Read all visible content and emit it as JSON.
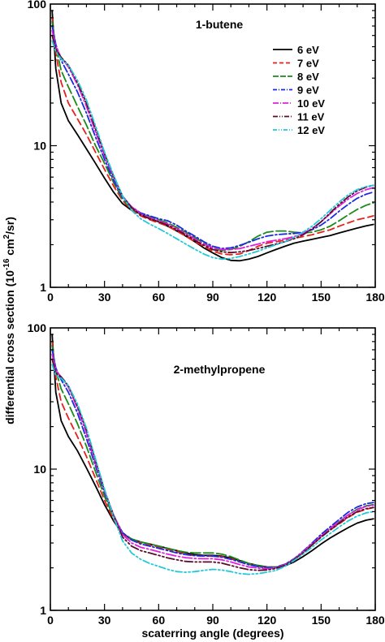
{
  "chart_data": {
    "type": "line",
    "xlabel": "scaterring angle (degrees)",
    "ylabel_main": "differential cross section (10",
    "ylabel_exp": "-16",
    "ylabel_mid": " cm",
    "ylabel_exp2": "2",
    "ylabel_end": "/sr)",
    "y_scale": "log",
    "xlim": [
      0,
      180
    ],
    "ylim": [
      1,
      100
    ],
    "x_ticks": [
      "0",
      "30",
      "60",
      "90",
      "120",
      "150",
      "180"
    ],
    "y_ticks": [
      "1",
      "10",
      "100"
    ],
    "legend_position": "top-right",
    "legend": [
      {
        "name": "6 eV",
        "color": "#000000",
        "dash": ""
      },
      {
        "name": "7 eV",
        "color": "#e8201c",
        "dash": "8,5"
      },
      {
        "name": "8 eV",
        "color": "#1a8a1a",
        "dash": "12,4"
      },
      {
        "name": "9 eV",
        "color": "#1c2be0",
        "dash": "9,3,2,3"
      },
      {
        "name": "10 eV",
        "color": "#e020e0",
        "dash": "12,3,2,3"
      },
      {
        "name": "11 eV",
        "color": "#5a0d2a",
        "dash": "10,3,2,3,2,3"
      },
      {
        "name": "12 eV",
        "color": "#22c8d8",
        "dash": "8,3,2,3,2,3"
      }
    ],
    "panels": [
      {
        "title": "1-butene",
        "x": [
          1,
          3,
          6,
          10,
          15,
          20,
          25,
          30,
          35,
          40,
          45,
          50,
          55,
          60,
          65,
          70,
          75,
          80,
          85,
          90,
          95,
          100,
          105,
          110,
          115,
          120,
          125,
          130,
          135,
          140,
          145,
          150,
          155,
          160,
          165,
          170,
          175,
          179
        ],
        "series": [
          {
            "name": "6 eV",
            "values": [
              90,
              35,
              20,
              15,
              12,
              9.5,
              7.5,
              5.9,
              4.7,
              3.9,
              3.5,
              3.3,
              3.1,
              2.9,
              2.7,
              2.5,
              2.3,
              2.1,
              1.9,
              1.75,
              1.62,
              1.55,
              1.54,
              1.58,
              1.65,
              1.75,
              1.85,
              1.95,
              2.05,
              2.12,
              2.18,
              2.25,
              2.32,
              2.42,
              2.52,
              2.62,
              2.72,
              2.78
            ]
          },
          {
            "name": "7 eV",
            "values": [
              80,
              45,
              28,
              20,
              15.5,
              12,
              9.0,
              6.8,
              5.2,
              4.1,
              3.5,
              3.2,
              3.0,
              2.85,
              2.7,
              2.5,
              2.3,
              2.1,
              1.95,
              1.8,
              1.72,
              1.7,
              1.72,
              1.82,
              1.95,
              2.05,
              2.1,
              2.15,
              2.22,
              2.28,
              2.35,
              2.45,
              2.55,
              2.7,
              2.85,
              3.0,
              3.1,
              3.2
            ]
          },
          {
            "name": "8 eV",
            "values": [
              75,
              50,
              34,
              26,
              19,
              14,
              10,
              7.5,
              5.5,
              4.2,
              3.6,
              3.3,
              3.15,
              3.0,
              2.85,
              2.65,
              2.45,
              2.25,
              2.05,
              1.9,
              1.82,
              1.85,
              1.95,
              2.1,
              2.3,
              2.45,
              2.5,
              2.5,
              2.45,
              2.42,
              2.45,
              2.55,
              2.7,
              2.95,
              3.25,
              3.55,
              3.8,
              3.95
            ]
          },
          {
            "name": "9 eV",
            "values": [
              70,
              52,
              40,
              32,
              24,
              17,
              11.5,
              8.0,
              5.7,
              4.3,
              3.7,
              3.35,
              3.2,
              3.05,
              2.95,
              2.75,
              2.5,
              2.3,
              2.1,
              1.95,
              1.88,
              1.9,
              1.98,
              2.08,
              2.2,
              2.3,
              2.35,
              2.38,
              2.4,
              2.45,
              2.55,
              2.75,
              3.05,
              3.45,
              3.85,
              4.25,
              4.55,
              4.7
            ]
          },
          {
            "name": "10 eV",
            "values": [
              65,
              50,
              42,
              36,
              27,
              19,
              12.5,
              8.5,
              6.0,
              4.4,
              3.7,
              3.3,
              3.1,
              2.95,
              2.8,
              2.6,
              2.4,
              2.2,
              2.02,
              1.9,
              1.85,
              1.85,
              1.88,
              1.95,
              2.02,
              2.1,
              2.15,
              2.2,
              2.28,
              2.4,
              2.6,
              2.9,
              3.3,
              3.75,
              4.2,
              4.6,
              4.9,
              5.05
            ]
          },
          {
            "name": "11 eV",
            "values": [
              60,
              48,
              42,
              37,
              28,
              20,
              13.2,
              8.8,
              6.1,
              4.4,
              3.65,
              3.25,
              3.05,
              2.9,
              2.75,
              2.55,
              2.35,
              2.15,
              1.98,
              1.85,
              1.78,
              1.76,
              1.78,
              1.82,
              1.88,
              1.95,
              2.02,
              2.1,
              2.2,
              2.35,
              2.58,
              2.9,
              3.35,
              3.85,
              4.35,
              4.8,
              5.1,
              5.25
            ]
          },
          {
            "name": "12 eV",
            "values": [
              55,
              46,
              41,
              37,
              29,
              21,
              13.8,
              9.0,
              6.2,
              4.4,
              3.5,
              3.05,
              2.8,
              2.6,
              2.4,
              2.2,
              2.02,
              1.86,
              1.72,
              1.62,
              1.58,
              1.6,
              1.65,
              1.72,
              1.8,
              1.9,
              2.0,
              2.1,
              2.25,
              2.45,
              2.7,
              3.05,
              3.5,
              4.0,
              4.5,
              4.9,
              5.15,
              5.25
            ]
          }
        ]
      },
      {
        "title": "2-methylpropene",
        "x": [
          1,
          3,
          6,
          10,
          15,
          20,
          25,
          30,
          35,
          40,
          45,
          50,
          55,
          60,
          65,
          70,
          75,
          80,
          85,
          90,
          95,
          100,
          105,
          110,
          115,
          120,
          125,
          130,
          135,
          140,
          145,
          150,
          155,
          160,
          165,
          170,
          175,
          179
        ],
        "series": [
          {
            "name": "6 eV",
            "values": [
              90,
              35,
              22,
              17,
              13.5,
              10.2,
              7.6,
              5.6,
              4.3,
              3.5,
              3.2,
              3.05,
              2.95,
              2.85,
              2.75,
              2.65,
              2.55,
              2.48,
              2.45,
              2.45,
              2.42,
              2.35,
              2.25,
              2.15,
              2.08,
              2.03,
              2.02,
              2.07,
              2.2,
              2.4,
              2.65,
              2.95,
              3.25,
              3.55,
              3.85,
              4.15,
              4.35,
              4.45
            ]
          },
          {
            "name": "7 eV",
            "values": [
              80,
              45,
              30,
              23,
              17,
              12.3,
              8.6,
              6.0,
              4.4,
              3.5,
              3.15,
              3.0,
              2.9,
              2.8,
              2.7,
              2.6,
              2.5,
              2.44,
              2.42,
              2.42,
              2.4,
              2.32,
              2.22,
              2.12,
              2.05,
              2.02,
              2.03,
              2.1,
              2.28,
              2.55,
              2.9,
              3.3,
              3.7,
              4.1,
              4.55,
              4.95,
              5.2,
              5.35
            ]
          },
          {
            "name": "8 eV",
            "values": [
              75,
              50,
              37,
              29,
              21,
              14.5,
              9.6,
              6.4,
              4.6,
              3.55,
              3.2,
              3.05,
              2.95,
              2.85,
              2.75,
              2.65,
              2.58,
              2.55,
              2.55,
              2.55,
              2.5,
              2.4,
              2.27,
              2.15,
              2.07,
              2.02,
              2.03,
              2.12,
              2.3,
              2.6,
              2.95,
              3.35,
              3.8,
              4.25,
              4.75,
              5.2,
              5.5,
              5.6
            ]
          },
          {
            "name": "9 eV",
            "values": [
              70,
              52,
              43,
              35,
              25,
              16.5,
              10.5,
              6.8,
              4.7,
              3.55,
              3.15,
              2.95,
              2.85,
              2.75,
              2.65,
              2.55,
              2.48,
              2.44,
              2.43,
              2.42,
              2.38,
              2.3,
              2.2,
              2.1,
              2.04,
              2.0,
              2.02,
              2.12,
              2.32,
              2.62,
              3.0,
              3.45,
              3.9,
              4.4,
              4.95,
              5.4,
              5.7,
              5.8
            ]
          },
          {
            "name": "10 eV",
            "values": [
              65,
              50,
              45,
              38,
              27,
              18,
              11,
              7.0,
              4.75,
              3.45,
              3.0,
              2.8,
              2.7,
              2.6,
              2.5,
              2.42,
              2.36,
              2.33,
              2.32,
              2.32,
              2.28,
              2.2,
              2.11,
              2.03,
              1.99,
              1.97,
              2.0,
              2.1,
              2.3,
              2.6,
              2.95,
              3.35,
              3.8,
              4.25,
              4.75,
              5.15,
              5.45,
              5.55
            ]
          },
          {
            "name": "11 eV",
            "values": [
              60,
              48,
              45,
              39,
              28,
              19,
              11.5,
              7.1,
              4.7,
              3.3,
              2.85,
              2.65,
              2.55,
              2.45,
              2.35,
              2.28,
              2.22,
              2.2,
              2.2,
              2.2,
              2.16,
              2.08,
              2.0,
              1.94,
              1.92,
              1.93,
              1.98,
              2.08,
              2.28,
              2.55,
              2.9,
              3.3,
              3.7,
              4.15,
              4.6,
              5.0,
              5.25,
              5.35
            ]
          },
          {
            "name": "12 eV",
            "values": [
              55,
              46,
              44,
              39,
              29,
              19.5,
              11.8,
              7.2,
              4.6,
              3.1,
              2.55,
              2.3,
              2.15,
              2.05,
              1.95,
              1.88,
              1.86,
              1.88,
              1.92,
              1.95,
              1.93,
              1.88,
              1.82,
              1.8,
              1.82,
              1.86,
              1.92,
              2.05,
              2.25,
              2.5,
              2.8,
              3.15,
              3.5,
              3.9,
              4.3,
              4.65,
              4.9,
              5.0
            ]
          }
        ]
      }
    ]
  }
}
